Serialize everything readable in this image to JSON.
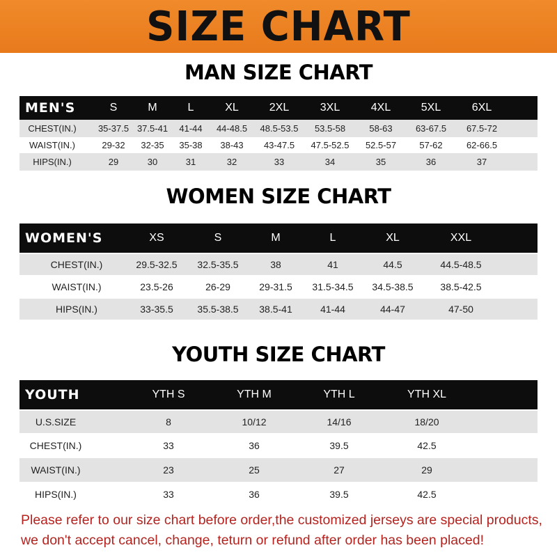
{
  "banner_title": "SIZE CHART",
  "men": {
    "heading": "MAN SIZE CHART",
    "header": [
      "MEN'S",
      "S",
      "M",
      "L",
      "XL",
      "2XL",
      "3XL",
      "4XL",
      "5XL",
      "6XL"
    ],
    "rows": [
      [
        "CHEST(IN.)",
        "35-37.5",
        "37.5-41",
        "41-44",
        "44-48.5",
        "48.5-53.5",
        "53.5-58",
        "58-63",
        "63-67.5",
        "67.5-72"
      ],
      [
        "WAIST(IN.)",
        "29-32",
        "32-35",
        "35-38",
        "38-43",
        "43-47.5",
        "47.5-52.5",
        "52.5-57",
        "57-62",
        "62-66.5"
      ],
      [
        "HIPS(IN.)",
        "29",
        "30",
        "31",
        "32",
        "33",
        "34",
        "35",
        "36",
        "37"
      ]
    ]
  },
  "women": {
    "heading": "WOMEN SIZE CHART",
    "header": [
      "WOMEN'S",
      "XS",
      "S",
      "M",
      "L",
      "XL",
      "XXL"
    ],
    "rows": [
      [
        "CHEST(IN.)",
        "29.5-32.5",
        "32.5-35.5",
        "38",
        "41",
        "44.5",
        "44.5-48.5"
      ],
      [
        "WAIST(IN.)",
        "23.5-26",
        "26-29",
        "29-31.5",
        "31.5-34.5",
        "34.5-38.5",
        "38.5-42.5"
      ],
      [
        "HIPS(IN.)",
        "33-35.5",
        "35.5-38.5",
        "38.5-41",
        "41-44",
        "44-47",
        "47-50"
      ]
    ]
  },
  "youth": {
    "heading": "YOUTH SIZE CHART",
    "header": [
      "YOUTH",
      "YTH S",
      "YTH M",
      "YTH L",
      "YTH XL"
    ],
    "rows": [
      [
        "U.S.SIZE",
        "8",
        "10/12",
        "14/16",
        "18/20"
      ],
      [
        "CHEST(IN.)",
        "33",
        "36",
        "39.5",
        "42.5"
      ],
      [
        "WAIST(IN.)",
        "23",
        "25",
        "27",
        "29"
      ],
      [
        "HIPS(IN.)",
        "33",
        "36",
        "39.5",
        "42.5"
      ]
    ]
  },
  "notice": [
    "Please refer to our size chart before order,the customized jerseys are special products,",
    "we don't accept cancel, change, teturn or refund after order has been placed!"
  ]
}
